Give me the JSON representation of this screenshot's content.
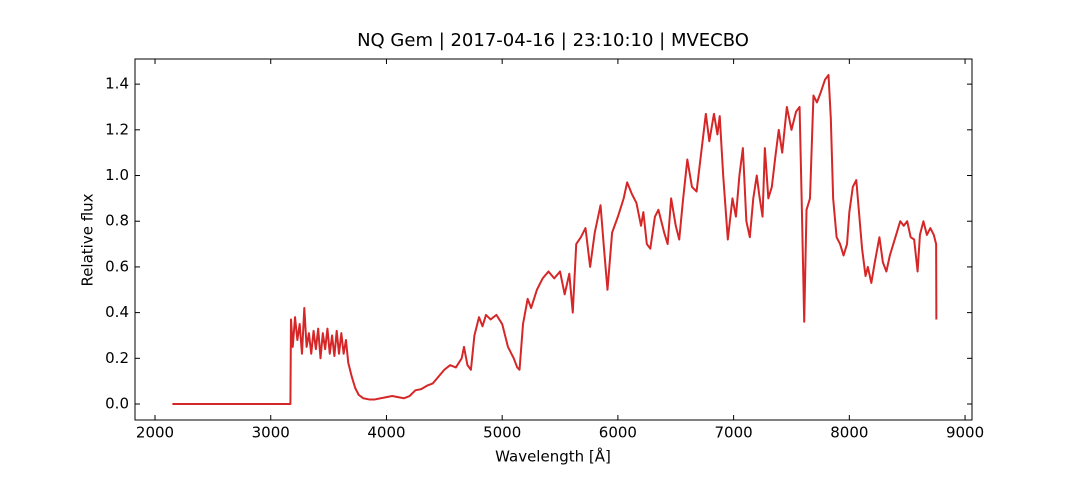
{
  "chart_data": {
    "type": "line",
    "title": "NQ Gem | 2017-04-16 | 23:10:10 | MVECBO",
    "xlabel": "Wavelength [Å]",
    "ylabel": "Relative flux",
    "color": "#d62728",
    "xlim": [
      1827,
      9060
    ],
    "ylim": [
      -0.07,
      1.51
    ],
    "xticks": [
      2000,
      3000,
      4000,
      5000,
      6000,
      7000,
      8000,
      9000
    ],
    "yticks": [
      {
        "value": 0,
        "label": "0.0"
      },
      0.2,
      0.4,
      0.6,
      0.8,
      {
        "value": 1,
        "label": "1.0"
      },
      1.2,
      1.4
    ],
    "x": [
      2150,
      3170,
      3175,
      3190,
      3210,
      3230,
      3250,
      3270,
      3290,
      3310,
      3330,
      3350,
      3370,
      3390,
      3410,
      3430,
      3450,
      3470,
      3490,
      3510,
      3530,
      3550,
      3570,
      3590,
      3610,
      3630,
      3650,
      3670,
      3700,
      3730,
      3760,
      3800,
      3850,
      3900,
      3950,
      4000,
      4050,
      4100,
      4150,
      4200,
      4250,
      4300,
      4350,
      4400,
      4450,
      4500,
      4550,
      4600,
      4650,
      4670,
      4700,
      4730,
      4760,
      4800,
      4830,
      4860,
      4900,
      4950,
      5000,
      5050,
      5100,
      5130,
      5150,
      5180,
      5220,
      5250,
      5300,
      5350,
      5400,
      5450,
      5500,
      5540,
      5580,
      5610,
      5640,
      5680,
      5720,
      5760,
      5800,
      5850,
      5880,
      5910,
      5950,
      6000,
      6050,
      6080,
      6120,
      6160,
      6200,
      6220,
      6250,
      6280,
      6320,
      6350,
      6400,
      6430,
      6460,
      6500,
      6530,
      6560,
      6600,
      6640,
      6680,
      6720,
      6760,
      6790,
      6830,
      6860,
      6880,
      6910,
      6950,
      6990,
      7020,
      7050,
      7080,
      7110,
      7140,
      7170,
      7200,
      7220,
      7250,
      7270,
      7300,
      7330,
      7360,
      7390,
      7420,
      7460,
      7500,
      7540,
      7570,
      7590,
      7610,
      7630,
      7660,
      7690,
      7720,
      7750,
      7790,
      7820,
      7840,
      7860,
      7890,
      7920,
      7950,
      7980,
      8000,
      8030,
      8060,
      8090,
      8110,
      8140,
      8160,
      8190,
      8220,
      8260,
      8290,
      8320,
      8350,
      8380,
      8410,
      8440,
      8470,
      8500,
      8530,
      8560,
      8590,
      8610,
      8640,
      8670,
      8700,
      8730,
      8750,
      8752
    ],
    "values": [
      0,
      0,
      0.37,
      0.25,
      0.38,
      0.28,
      0.35,
      0.22,
      0.42,
      0.25,
      0.31,
      0.22,
      0.32,
      0.24,
      0.33,
      0.2,
      0.31,
      0.24,
      0.33,
      0.22,
      0.3,
      0.21,
      0.32,
      0.22,
      0.31,
      0.22,
      0.28,
      0.18,
      0.12,
      0.07,
      0.04,
      0.025,
      0.02,
      0.02,
      0.025,
      0.03,
      0.035,
      0.03,
      0.025,
      0.035,
      0.06,
      0.065,
      0.08,
      0.09,
      0.12,
      0.15,
      0.17,
      0.16,
      0.2,
      0.25,
      0.17,
      0.15,
      0.3,
      0.38,
      0.34,
      0.39,
      0.37,
      0.39,
      0.35,
      0.25,
      0.2,
      0.16,
      0.15,
      0.35,
      0.46,
      0.42,
      0.5,
      0.55,
      0.58,
      0.55,
      0.58,
      0.48,
      0.57,
      0.4,
      0.7,
      0.73,
      0.77,
      0.6,
      0.75,
      0.87,
      0.68,
      0.5,
      0.75,
      0.82,
      0.9,
      0.97,
      0.92,
      0.88,
      0.78,
      0.84,
      0.7,
      0.68,
      0.82,
      0.85,
      0.75,
      0.7,
      0.9,
      0.78,
      0.72,
      0.88,
      1.07,
      0.95,
      0.93,
      1.1,
      1.27,
      1.15,
      1.27,
      1.18,
      1.26,
      1.0,
      0.72,
      0.9,
      0.82,
      1.0,
      1.12,
      0.8,
      0.73,
      0.9,
      1.0,
      0.92,
      0.82,
      1.12,
      0.9,
      0.95,
      1.08,
      1.2,
      1.1,
      1.3,
      1.2,
      1.28,
      1.3,
      0.85,
      0.36,
      0.85,
      0.9,
      1.35,
      1.32,
      1.36,
      1.42,
      1.44,
      1.25,
      0.9,
      0.73,
      0.7,
      0.65,
      0.7,
      0.84,
      0.95,
      0.98,
      0.8,
      0.68,
      0.56,
      0.6,
      0.53,
      0.62,
      0.73,
      0.62,
      0.58,
      0.65,
      0.7,
      0.75,
      0.8,
      0.78,
      0.8,
      0.73,
      0.72,
      0.58,
      0.74,
      0.8,
      0.74,
      0.77,
      0.74,
      0.7,
      0.37
    ]
  }
}
